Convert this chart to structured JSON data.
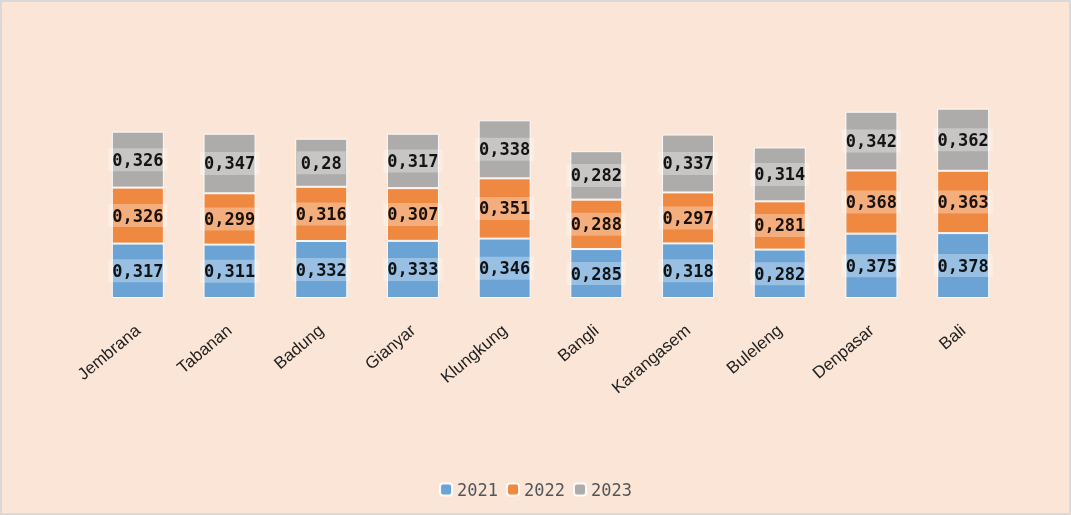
{
  "chart_data": {
    "type": "bar",
    "stacked": true,
    "categories": [
      "Jembrana",
      "Tabanan",
      "Badung",
      "Gianyar",
      "Klungkung",
      "Bangli",
      "Karangasem",
      "Buleleng",
      "Denpasar",
      "Bali"
    ],
    "series": [
      {
        "name": "2021",
        "color": "#5b9bd5",
        "values": [
          0.317,
          0.311,
          0.332,
          0.333,
          0.346,
          0.285,
          0.318,
          0.282,
          0.375,
          0.378
        ],
        "value_labels": [
          "0,317",
          "0,311",
          "0,332",
          "0,333",
          "0,346",
          "0,285",
          "0,318",
          "0,282",
          "0,375",
          "0,378"
        ]
      },
      {
        "name": "2022",
        "color": "#ed7d31",
        "values": [
          0.326,
          0.299,
          0.316,
          0.307,
          0.351,
          0.288,
          0.297,
          0.281,
          0.368,
          0.363
        ],
        "value_labels": [
          "0,326",
          "0,299",
          "0,316",
          "0,307",
          "0,351",
          "0,288",
          "0,297",
          "0,281",
          "0,368",
          "0,363"
        ]
      },
      {
        "name": "2023",
        "color": "#a5a5a5",
        "values": [
          0.326,
          0.347,
          0.28,
          0.317,
          0.338,
          0.282,
          0.337,
          0.314,
          0.342,
          0.362
        ],
        "value_labels": [
          "0,326",
          "0,347",
          "0,28",
          "0,317",
          "0,338",
          "0,282",
          "0,337",
          "0,314",
          "0,342",
          "0,362"
        ]
      }
    ],
    "legend": "bottom"
  }
}
